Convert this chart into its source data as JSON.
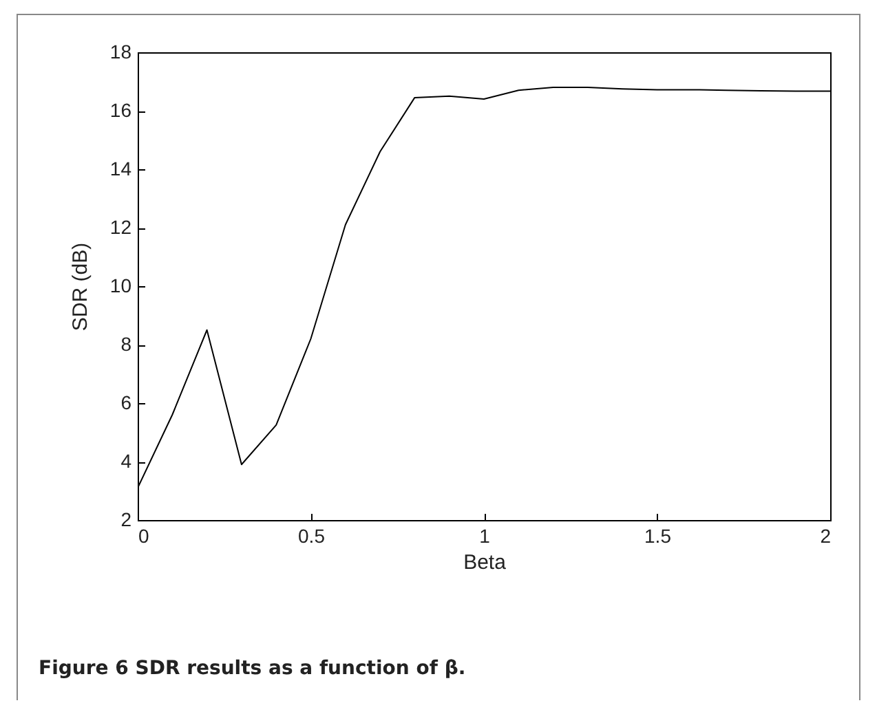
{
  "chart_data": {
    "type": "line",
    "xlabel": "Beta",
    "ylabel": "SDR (dB)",
    "annotations": [
      "Figure 6 SDR results as a function of β."
    ],
    "x": [
      0,
      0.1,
      0.2,
      0.3,
      0.4,
      0.5,
      0.6,
      0.7,
      0.8,
      0.9,
      1.0,
      1.1,
      1.2,
      1.3,
      1.4,
      1.5,
      1.6,
      1.7,
      1.8,
      1.9,
      2.0
    ],
    "series": [
      {
        "color": "#000000",
        "values": [
          3.1,
          5.6,
          8.5,
          3.9,
          5.25,
          8.2,
          12.1,
          14.6,
          16.45,
          16.5,
          16.4,
          16.7,
          16.8,
          16.8,
          16.75,
          16.72,
          16.72,
          16.7,
          16.68,
          16.67,
          16.67
        ]
      }
    ],
    "xlim": [
      0,
      2
    ],
    "xticks": [
      0,
      0.5,
      1,
      1.5,
      2
    ],
    "ylim": [
      2,
      18
    ],
    "yticks": [
      2,
      4,
      6,
      8,
      10,
      12,
      14,
      16,
      18
    ],
    "grid": false,
    "marker": "none",
    "line_style": "solid"
  }
}
